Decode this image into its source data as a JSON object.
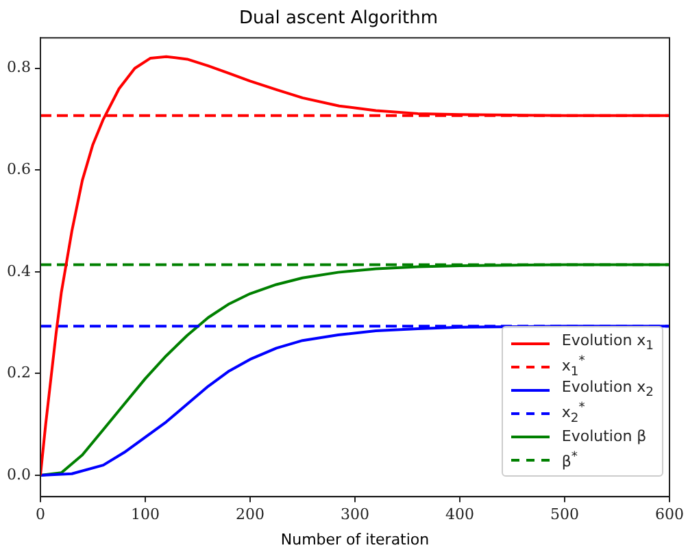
{
  "chart_data": {
    "type": "line",
    "title": "Dual ascent Algorithm",
    "xlabel": "Number of iteration",
    "xlim": [
      0,
      600
    ],
    "xticks": [
      0,
      100,
      200,
      300,
      400,
      500,
      600
    ],
    "ylim": [
      -0.042,
      0.86
    ],
    "yticks": [
      {
        "value": 0,
        "label": "0.0"
      },
      {
        "value": 0.2,
        "label": "0.2"
      },
      {
        "value": 0.4,
        "label": "0.4"
      },
      {
        "value": 0.6,
        "label": "0.6"
      },
      {
        "value": 0.8,
        "label": "0.8"
      }
    ],
    "grid": false,
    "legend": "bottom right",
    "marker": "none",
    "series": [
      {
        "name": "Evolution x$_{1}$",
        "color": "#ff0000",
        "line_style": "solid",
        "x": [
          0,
          5,
          10,
          15,
          20,
          25,
          30,
          40,
          50,
          60,
          75,
          90,
          105,
          120,
          140,
          160,
          180,
          200,
          225,
          250,
          285,
          320,
          360,
          400,
          450,
          500,
          600
        ],
        "values": [
          0,
          0.1,
          0.19,
          0.28,
          0.36,
          0.42,
          0.48,
          0.58,
          0.65,
          0.7,
          0.76,
          0.8,
          0.82,
          0.823,
          0.818,
          0.805,
          0.79,
          0.775,
          0.758,
          0.742,
          0.726,
          0.717,
          0.711,
          0.709,
          0.708,
          0.707,
          0.707
        ]
      },
      {
        "name": "x$_{1}$$^{*}$",
        "color": "#ff0000",
        "line_style": "dashed",
        "x": [
          0,
          600
        ],
        "values": [
          0.707,
          0.707
        ]
      },
      {
        "name": "Evolution x$_{2}$",
        "color": "#0000ff",
        "line_style": "solid",
        "x": [
          0,
          30,
          60,
          80,
          100,
          120,
          140,
          160,
          180,
          200,
          225,
          250,
          284,
          320,
          360,
          400,
          450,
          500,
          600
        ],
        "values": [
          0,
          0.003,
          0.02,
          0.045,
          0.075,
          0.105,
          0.14,
          0.175,
          0.205,
          0.228,
          0.25,
          0.265,
          0.276,
          0.284,
          0.288,
          0.291,
          0.292,
          0.293,
          0.293
        ]
      },
      {
        "name": "x$_{2}$$^{*}$",
        "color": "#0000ff",
        "line_style": "dashed",
        "x": [
          0,
          600
        ],
        "values": [
          0.293,
          0.293
        ]
      },
      {
        "name": "Evolution β",
        "color": "#008000",
        "line_style": "solid",
        "x": [
          0,
          20,
          40,
          60,
          80,
          100,
          120,
          140,
          160,
          180,
          200,
          225,
          250,
          284,
          320,
          360,
          400,
          450,
          500,
          600
        ],
        "values": [
          0,
          0.005,
          0.04,
          0.09,
          0.14,
          0.19,
          0.235,
          0.275,
          0.31,
          0.337,
          0.357,
          0.375,
          0.388,
          0.399,
          0.406,
          0.41,
          0.412,
          0.413,
          0.414,
          0.414
        ]
      },
      {
        "name": "β$^{*}$",
        "color": "#008000",
        "line_style": "dashed",
        "x": [
          0,
          600
        ],
        "values": [
          0.414,
          0.414
        ]
      }
    ]
  }
}
